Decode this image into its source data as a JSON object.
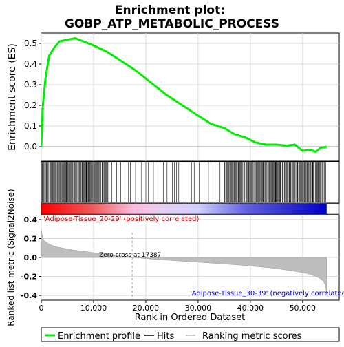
{
  "chart_data": {
    "type": "line",
    "title_line1": "Enrichment plot:",
    "title_line2": "GOBP_ATP_METABOLIC_PROCESS",
    "es_ylabel": "Enrichment score (ES)",
    "es_ylim": [
      -0.07,
      0.55
    ],
    "es_yticks": [
      0.0,
      0.1,
      0.2,
      0.3,
      0.4,
      0.5
    ],
    "es_ytick_labels": [
      "0.0",
      "0.1",
      "0.2",
      "0.3",
      "0.4",
      "0.5"
    ],
    "xlim": [
      0,
      57000
    ],
    "xticks": [
      0,
      10000,
      20000,
      30000,
      40000,
      50000
    ],
    "xtick_labels": [
      "0",
      "10,000",
      "20,000",
      "30,000",
      "40,000",
      "50,000"
    ],
    "xlabel": "Rank in Ordered Dataset",
    "n_genes": 54600,
    "es_curve": {
      "x": [
        0,
        300,
        800,
        1500,
        2500,
        3500,
        4500,
        5500,
        6500,
        8000,
        10000,
        12500,
        15000,
        18000,
        21000,
        24000,
        27000,
        30000,
        32500,
        35000,
        37000,
        39000,
        41000,
        43000,
        45000,
        47000,
        48500,
        50000,
        51500,
        52500,
        53500,
        54600
      ],
      "y": [
        0.0,
        0.2,
        0.33,
        0.44,
        0.48,
        0.51,
        0.515,
        0.52,
        0.525,
        0.51,
        0.49,
        0.46,
        0.42,
        0.37,
        0.31,
        0.25,
        0.2,
        0.15,
        0.11,
        0.09,
        0.06,
        0.045,
        0.02,
        0.01,
        0.01,
        0.005,
        0.01,
        -0.02,
        -0.015,
        -0.025,
        -0.005,
        0.0
      ]
    },
    "hits_dense_segments": [
      [
        0,
        13000
      ],
      [
        35000,
        54600
      ]
    ],
    "hits_sparse_segments": [
      [
        13000,
        35000
      ]
    ],
    "metric_ylabel": "Ranked list metric (Signal2Noise)",
    "metric_ylim": [
      -0.45,
      0.45
    ],
    "metric_yticks": [
      -0.4,
      -0.2,
      0.0,
      0.2,
      0.4
    ],
    "metric_ytick_labels": [
      "-0.4",
      "-0.2",
      "0.0",
      "0.2",
      "0.4"
    ],
    "metric_curve": {
      "x": [
        0,
        100,
        500,
        1500,
        3000,
        6000,
        10000,
        14000,
        17387,
        22000,
        30000,
        38000,
        44000,
        48000,
        51000,
        53000,
        54000,
        54400,
        54600
      ],
      "y": [
        0.3,
        0.25,
        0.18,
        0.14,
        0.11,
        0.08,
        0.05,
        0.025,
        0.0,
        -0.02,
        -0.05,
        -0.08,
        -0.11,
        -0.14,
        -0.17,
        -0.21,
        -0.25,
        -0.3,
        -0.4
      ]
    },
    "zero_cross_rank": 17387,
    "zero_cross_label": "Zero cross at 17387",
    "pos_label": "'Adipose-Tissue_20-29' (positively correlated)",
    "neg_label": "'Adipose-Tissue_30-39' (negatively correlated)",
    "legend": [
      "Enrichment profile",
      "Hits",
      "Ranking metric scores"
    ],
    "colors": {
      "es_line": "#00ee00",
      "hits": "#000000",
      "metric_fill": "#bebebe",
      "pos_text": "#cc0000",
      "neg_text": "#0000cc",
      "grid": "#d9d9d9"
    }
  }
}
